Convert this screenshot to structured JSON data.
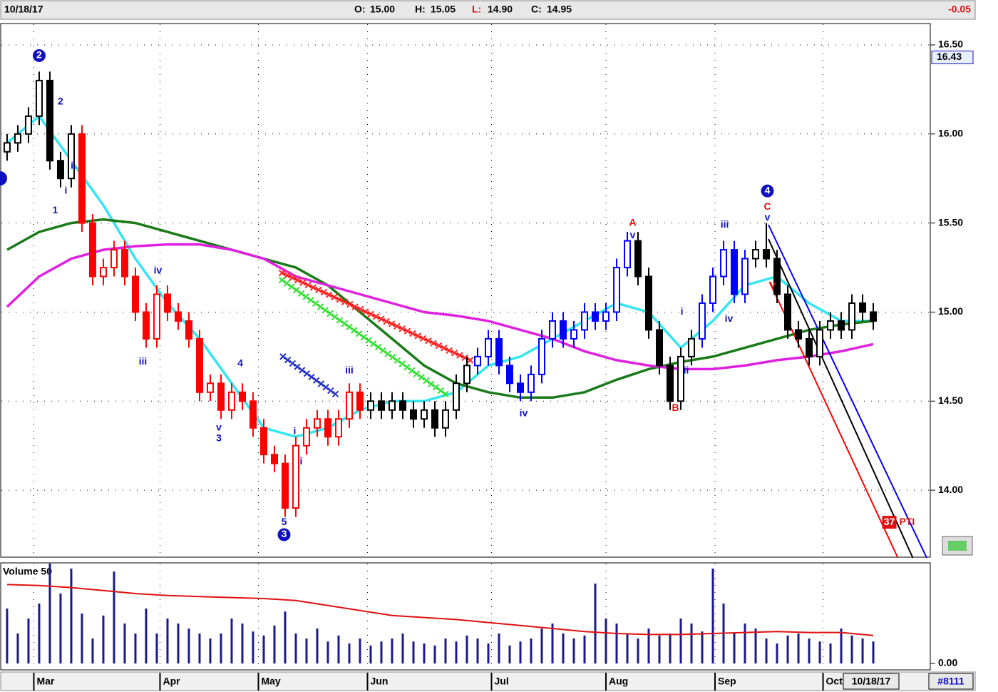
{
  "chart_data": {
    "type": "candlestick",
    "header": {
      "date": "10/18/17",
      "ohlc": [
        {
          "label": "O:",
          "value": "15.00"
        },
        {
          "label": "H:",
          "value": "15.05"
        },
        {
          "label": "L:",
          "value": "14.90"
        },
        {
          "label": "C:",
          "value": "14.95"
        }
      ],
      "change": -0.05
    },
    "xlim": [
      -0.33,
      86.33
    ],
    "ylim": [
      13.62,
      16.62
    ],
    "yticks": [
      {
        "value": 14,
        "label": "14.00"
      },
      {
        "value": 14.5,
        "label": "14.50"
      },
      {
        "value": 15,
        "label": "15.00"
      },
      {
        "value": 15.5,
        "label": "15.50"
      },
      {
        "value": 16,
        "label": "16.00"
      },
      {
        "value": 16.5,
        "label": "16.50"
      }
    ],
    "xticks": [
      {
        "value": 2.5,
        "label": "Mar"
      },
      {
        "value": 14.3,
        "label": "Apr"
      },
      {
        "value": 23.5,
        "label": "May"
      },
      {
        "value": 33.7,
        "label": "Jun"
      },
      {
        "value": 45.3,
        "label": "Jul"
      },
      {
        "value": 56,
        "label": "Aug"
      },
      {
        "value": 66.2,
        "label": "Sep"
      },
      {
        "value": 76.3,
        "label": "Oct"
      }
    ],
    "grid": true,
    "price_marker": {
      "value": 16.43,
      "label": "16.43"
    },
    "end_date": "10/18/17",
    "symbol_tag": "#8111",
    "open": [
      15.9,
      15.95,
      16.0,
      16.1,
      16.3,
      15.85,
      15.75,
      16.0,
      15.5,
      15.2,
      15.25,
      15.35,
      15.2,
      15.0,
      14.85,
      15.1,
      15.0,
      14.95,
      14.85,
      14.55,
      14.6,
      14.45,
      14.55,
      14.5,
      14.35,
      14.2,
      14.15,
      13.9,
      14.25,
      14.35,
      14.4,
      14.3,
      14.4,
      14.55,
      14.45,
      14.5,
      14.45,
      14.5,
      14.45,
      14.4,
      14.45,
      14.35,
      14.45,
      14.6,
      14.7,
      14.75,
      14.85,
      14.7,
      14.6,
      14.55,
      14.65,
      14.85,
      14.95,
      14.85,
      14.9,
      15.0,
      14.95,
      15.0,
      15.25,
      15.4,
      15.2,
      14.9,
      14.7,
      14.5,
      14.75,
      14.85,
      15.05,
      15.2,
      15.35,
      15.1,
      15.3,
      15.35,
      15.3,
      15.1,
      14.9,
      14.85,
      14.75,
      14.9,
      14.95,
      14.9,
      15.05,
      15.0
    ],
    "high": [
      16.0,
      16.05,
      16.15,
      16.35,
      16.35,
      15.9,
      16.05,
      16.05,
      15.55,
      15.3,
      15.4,
      15.4,
      15.25,
      15.05,
      15.15,
      15.15,
      15.05,
      15.0,
      14.9,
      14.65,
      14.65,
      14.6,
      14.6,
      14.55,
      14.4,
      14.25,
      14.2,
      14.3,
      14.4,
      14.45,
      14.45,
      14.45,
      14.6,
      14.6,
      14.55,
      14.55,
      14.55,
      14.55,
      14.5,
      14.5,
      14.5,
      14.5,
      14.65,
      14.75,
      14.8,
      14.9,
      14.9,
      14.75,
      14.65,
      14.7,
      14.9,
      15.0,
      15.0,
      14.95,
      15.05,
      15.05,
      15.05,
      15.3,
      15.45,
      15.45,
      15.25,
      14.95,
      14.75,
      14.8,
      14.9,
      15.1,
      15.25,
      15.4,
      15.4,
      15.35,
      15.4,
      15.5,
      15.35,
      15.15,
      14.95,
      14.9,
      14.95,
      15.0,
      15.0,
      15.1,
      15.1,
      15.05
    ],
    "low": [
      15.85,
      15.9,
      15.95,
      16.05,
      15.8,
      15.7,
      15.7,
      15.45,
      15.15,
      15.15,
      15.2,
      15.15,
      14.95,
      14.8,
      14.8,
      14.95,
      14.9,
      14.8,
      14.5,
      14.5,
      14.4,
      14.4,
      14.45,
      14.3,
      14.15,
      14.1,
      13.85,
      13.85,
      14.2,
      14.3,
      14.25,
      14.25,
      14.35,
      14.4,
      14.4,
      14.4,
      14.4,
      14.4,
      14.35,
      14.35,
      14.3,
      14.3,
      14.4,
      14.55,
      14.65,
      14.7,
      14.65,
      14.55,
      14.5,
      14.5,
      14.6,
      14.8,
      14.8,
      14.8,
      14.85,
      14.9,
      14.9,
      14.95,
      15.2,
      15.15,
      14.85,
      14.65,
      14.45,
      14.45,
      14.7,
      14.8,
      15.0,
      15.15,
      15.05,
      15.05,
      15.25,
      15.25,
      15.05,
      14.85,
      14.8,
      14.7,
      14.7,
      14.85,
      14.85,
      14.85,
      14.95,
      14.9
    ],
    "close": [
      15.95,
      16.0,
      16.1,
      16.3,
      15.85,
      15.75,
      16.0,
      15.5,
      15.2,
      15.25,
      15.35,
      15.2,
      15.0,
      14.85,
      15.1,
      15.0,
      14.95,
      14.85,
      14.55,
      14.6,
      14.45,
      14.55,
      14.5,
      14.35,
      14.2,
      14.15,
      13.9,
      14.25,
      14.35,
      14.4,
      14.3,
      14.4,
      14.55,
      14.45,
      14.5,
      14.45,
      14.5,
      14.45,
      14.4,
      14.45,
      14.35,
      14.45,
      14.6,
      14.7,
      14.75,
      14.85,
      14.7,
      14.6,
      14.55,
      14.65,
      14.85,
      14.95,
      14.85,
      14.9,
      15.0,
      14.95,
      15.0,
      15.25,
      15.4,
      15.2,
      14.9,
      14.7,
      14.5,
      14.75,
      14.85,
      15.05,
      15.2,
      15.35,
      15.1,
      15.3,
      15.35,
      15.3,
      15.1,
      14.9,
      14.85,
      14.75,
      14.9,
      14.95,
      14.9,
      15.05,
      15.0,
      14.95
    ],
    "colors": [
      "#000",
      "#000",
      "#000",
      "#000",
      "#000",
      "#000",
      "#000",
      "#f00",
      "#f00",
      "#f00",
      "#f00",
      "#f00",
      "#f00",
      "#f00",
      "#f00",
      "#f00",
      "#f00",
      "#f00",
      "#f00",
      "#f00",
      "#f00",
      "#f00",
      "#f00",
      "#f00",
      "#f00",
      "#f00",
      "#f00",
      "#f00",
      "#f00",
      "#f00",
      "#f00",
      "#f00",
      "#f00",
      "#f00",
      "#000",
      "#000",
      "#000",
      "#000",
      "#000",
      "#000",
      "#000",
      "#000",
      "#000",
      "#000",
      "#00f",
      "#00f",
      "#00f",
      "#00f",
      "#00f",
      "#00f",
      "#00f",
      "#00f",
      "#00f",
      "#00f",
      "#00f",
      "#00f",
      "#00f",
      "#00f",
      "#00f",
      "#000",
      "#000",
      "#000",
      "#000",
      "#000",
      "#000",
      "#00f",
      "#00f",
      "#00f",
      "#00f",
      "#00f",
      "#000",
      "#000",
      "#000",
      "#000",
      "#000",
      "#000",
      "#000",
      "#000",
      "#000",
      "#000",
      "#000",
      "#000"
    ],
    "overlays": {
      "x": [
        0,
        3,
        6,
        9,
        12,
        15,
        18,
        21,
        24,
        27,
        30,
        33,
        36,
        39,
        42,
        45,
        48,
        51,
        54,
        57,
        60,
        63,
        66,
        69,
        72,
        75,
        78,
        81
      ],
      "series": [
        {
          "color": "#33e6f0",
          "values": [
            15.95,
            16.1,
            15.85,
            15.6,
            15.3,
            15.05,
            14.85,
            14.6,
            14.35,
            14.3,
            14.35,
            14.45,
            14.5,
            14.5,
            14.55,
            14.7,
            14.75,
            14.85,
            14.95,
            15.05,
            15.0,
            14.8,
            14.95,
            15.15,
            15.2,
            15.05,
            14.95,
            14.95
          ]
        },
        {
          "color": "#1a7a1a",
          "values": [
            15.35,
            15.45,
            15.5,
            15.52,
            15.5,
            15.45,
            15.4,
            15.35,
            15.3,
            15.25,
            15.15,
            15.0,
            14.85,
            14.7,
            14.6,
            14.55,
            14.52,
            14.52,
            14.55,
            14.62,
            14.68,
            14.72,
            14.75,
            14.8,
            14.85,
            14.9,
            14.93,
            14.95
          ]
        },
        {
          "color": "#e020e0",
          "values": [
            15.03,
            15.2,
            15.3,
            15.35,
            15.37,
            15.38,
            15.38,
            15.35,
            15.3,
            15.2,
            15.15,
            15.1,
            15.05,
            15.0,
            14.98,
            14.95,
            14.9,
            14.85,
            14.78,
            14.73,
            14.7,
            14.68,
            14.68,
            14.7,
            14.73,
            14.75,
            14.78,
            14.82
          ]
        }
      ]
    },
    "lines": [
      {
        "color": "#0000ff",
        "style": "plain",
        "x": [
          71.2,
          86.0
        ],
        "y": [
          15.49,
          13.62
        ]
      },
      {
        "color": "#000000",
        "style": "plain",
        "x": [
          71.2,
          84.7
        ],
        "y": [
          15.41,
          13.62
        ]
      },
      {
        "color": "#ff0000",
        "style": "plain",
        "x": [
          71.3,
          83.3
        ],
        "y": [
          15.17,
          13.62
        ]
      },
      {
        "color": "#ff2020",
        "style": "cross",
        "x": [
          25.7,
          43.3
        ],
        "y": [
          15.22,
          14.73
        ]
      },
      {
        "color": "#30e030",
        "style": "cross",
        "x": [
          25.7,
          41.0
        ],
        "y": [
          15.18,
          14.54
        ]
      },
      {
        "color": "#2030c0",
        "style": "cross",
        "x": [
          25.8,
          30.7
        ],
        "y": [
          14.75,
          14.54
        ]
      }
    ],
    "annotations": [
      {
        "text": "2",
        "x": 3,
        "y": 16.44,
        "color": "#1010c0",
        "circled": true
      },
      {
        "text": "2",
        "x": 5,
        "y": 16.18,
        "color": "#1010c0",
        "circled": false
      },
      {
        "text": "i.",
        "x": 6.2,
        "y": 15.82,
        "color": "#1010c0",
        "circled": false
      },
      {
        "text": "i",
        "x": 5.5,
        "y": 15.68,
        "color": "#1010c0",
        "circled": false
      },
      {
        "text": "1",
        "x": 4.5,
        "y": 15.57,
        "color": "#1010c0",
        "circled": false
      },
      {
        "text": "iv",
        "x": 14.1,
        "y": 15.23,
        "color": "#1010c0",
        "circled": false
      },
      {
        "text": "iii",
        "x": 12.7,
        "y": 14.72,
        "color": "#1010c0",
        "circled": false
      },
      {
        "text": "4",
        "x": 21.8,
        "y": 14.71,
        "color": "#1010c0",
        "circled": false
      },
      {
        "text": "v",
        "x": 19.8,
        "y": 14.35,
        "color": "#1010c0",
        "circled": false
      },
      {
        "text": "3",
        "x": 19.8,
        "y": 14.29,
        "color": "#1010c0",
        "circled": false
      },
      {
        "text": "i",
        "x": 26.9,
        "y": 14.33,
        "color": "#1010c0",
        "circled": false
      },
      {
        "text": "i",
        "x": 27.5,
        "y": 14.16,
        "color": "#1010c0",
        "circled": false
      },
      {
        "text": "5",
        "x": 25.9,
        "y": 13.82,
        "color": "#1010c0",
        "circled": false
      },
      {
        "text": "3",
        "x": 25.9,
        "y": 13.75,
        "color": "#1010c0",
        "circled": true
      },
      {
        "text": "iii",
        "x": 32,
        "y": 14.67,
        "color": "#1010c0",
        "circled": false
      },
      {
        "text": "iv",
        "x": 48.3,
        "y": 14.43,
        "color": "#1010c0",
        "circled": false
      },
      {
        "text": "A",
        "x": 58.5,
        "y": 15.5,
        "color": "#e01010",
        "circled": false
      },
      {
        "text": "v",
        "x": 58.5,
        "y": 15.43,
        "color": "#1010c0",
        "circled": false
      },
      {
        "text": "B",
        "x": 62.5,
        "y": 14.46,
        "color": "#e01010",
        "circled": false
      },
      {
        "text": "i",
        "x": 63.1,
        "y": 15.0,
        "color": "#1010c0",
        "circled": false
      },
      {
        "text": "ii",
        "x": 63.5,
        "y": 14.67,
        "color": "#1010c0",
        "circled": false
      },
      {
        "text": "iii",
        "x": 67.1,
        "y": 15.49,
        "color": "#1010c0",
        "circled": false
      },
      {
        "text": "iv",
        "x": 67.5,
        "y": 14.96,
        "color": "#1010c0",
        "circled": false
      },
      {
        "text": "4",
        "x": 71.1,
        "y": 15.68,
        "color": "#1010c0",
        "circled": true
      },
      {
        "text": "C",
        "x": 71.1,
        "y": 15.59,
        "color": "#e01010",
        "circled": false
      },
      {
        "text": "v",
        "x": 71.1,
        "y": 15.53,
        "color": "#1010c0",
        "circled": false
      },
      {
        "text": "v",
        "x": 71.6,
        "y": 15.15,
        "color": "#e01010",
        "circled": false
      }
    ],
    "pti": {
      "count": "37",
      "label": "PTI",
      "x": 82.5,
      "y": 13.82
    },
    "volume": {
      "title": "Volume 50",
      "ylim": [
        0,
        100
      ],
      "yticks": [
        {
          "value": 0,
          "label": "0.00"
        }
      ],
      "color": "#1a1a8c",
      "values": [
        55,
        30,
        45,
        60,
        100,
        70,
        95,
        50,
        25,
        48,
        92,
        40,
        30,
        55,
        30,
        45,
        40,
        35,
        30,
        25,
        30,
        45,
        40,
        32,
        28,
        38,
        52,
        30,
        25,
        35,
        22,
        28,
        20,
        25,
        18,
        22,
        25,
        30,
        22,
        20,
        18,
        25,
        22,
        28,
        25,
        20,
        30,
        18,
        22,
        25,
        35,
        40,
        30,
        25,
        28,
        80,
        45,
        40,
        30,
        25,
        35,
        28,
        30,
        45,
        40,
        32,
        95,
        60,
        30,
        40,
        35,
        25,
        20,
        28,
        30,
        25,
        22,
        20,
        35,
        28,
        25,
        22
      ],
      "average": {
        "color": "#e01010",
        "x": [
          0,
          3,
          6,
          9,
          12,
          15,
          18,
          21,
          24,
          27,
          30,
          33,
          36,
          39,
          42,
          45,
          48,
          51,
          54,
          57,
          60,
          63,
          66,
          69,
          72,
          75,
          78,
          81
        ],
        "values": [
          79,
          78,
          76,
          73,
          70,
          68,
          67,
          66,
          65,
          63,
          58,
          53,
          48,
          46,
          44,
          41,
          38,
          35,
          32,
          30,
          29,
          29,
          30,
          31,
          32,
          31,
          31,
          28
        ]
      }
    }
  }
}
